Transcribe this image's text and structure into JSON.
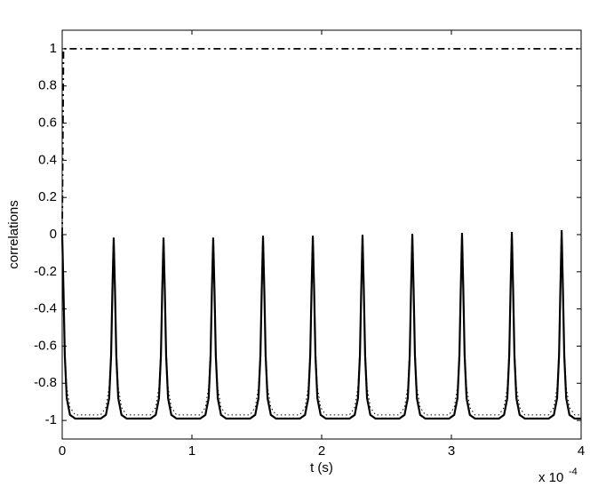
{
  "chart_data": {
    "type": "line",
    "x_label": "t (s)",
    "y_label": "correlations",
    "x_scale_label": "x 10",
    "x_scale_exponent": "-4",
    "xlim": [
      0,
      4
    ],
    "xticks": [
      0,
      1,
      2,
      3,
      4
    ],
    "ylim": [
      -1.1,
      1.1
    ],
    "yticks": [
      -1,
      -0.8,
      -0.6,
      -0.4,
      -0.2,
      0,
      0.2,
      0.4,
      0.6,
      0.8,
      1
    ],
    "grid": false,
    "x": [
      0,
      0.01,
      0.02,
      0.035,
      0.06,
      0.1,
      0.297,
      0.337,
      0.362,
      0.377,
      0.387,
      0.397,
      0.407,
      0.417,
      0.432,
      0.457,
      0.497,
      0.681,
      0.721,
      0.746,
      0.761,
      0.771,
      0.781,
      0.791,
      0.801,
      0.816,
      0.841,
      0.881,
      1.064,
      1.104,
      1.129,
      1.144,
      1.154,
      1.164,
      1.174,
      1.184,
      1.199,
      1.224,
      1.264,
      1.448,
      1.488,
      1.513,
      1.528,
      1.538,
      1.548,
      1.558,
      1.568,
      1.583,
      1.608,
      1.648,
      1.832,
      1.872,
      1.897,
      1.912,
      1.922,
      1.932,
      1.942,
      1.952,
      1.967,
      1.992,
      2.032,
      2.215,
      2.255,
      2.28,
      2.295,
      2.305,
      2.315,
      2.325,
      2.335,
      2.35,
      2.375,
      2.415,
      2.599,
      2.639,
      2.664,
      2.679,
      2.689,
      2.699,
      2.709,
      2.719,
      2.734,
      2.759,
      2.799,
      2.982,
      3.022,
      3.047,
      3.062,
      3.072,
      3.082,
      3.092,
      3.102,
      3.117,
      3.142,
      3.182,
      3.366,
      3.406,
      3.431,
      3.446,
      3.456,
      3.466,
      3.476,
      3.486,
      3.501,
      3.526,
      3.566,
      3.75,
      3.79,
      3.815,
      3.83,
      3.84,
      3.85,
      3.86,
      3.87,
      3.885,
      3.91,
      3.95,
      4
    ],
    "series": [
      {
        "color": "#000000",
        "linestyle": "dashdot",
        "x": [
          0,
          0.01,
          4
        ],
        "values": [
          0,
          1,
          1
        ]
      },
      {
        "color": "#000000",
        "linestyle": "dotted",
        "values": [
          0,
          -0.28,
          -0.6,
          -0.82,
          -0.93,
          -0.97,
          -0.97,
          -0.93,
          -0.82,
          -0.6,
          -0.28,
          -0.02,
          -0.28,
          -0.6,
          -0.82,
          -0.93,
          -0.97,
          -0.97,
          -0.93,
          -0.82,
          -0.6,
          -0.28,
          -0.02,
          -0.28,
          -0.6,
          -0.82,
          -0.93,
          -0.97,
          -0.97,
          -0.93,
          -0.82,
          -0.6,
          -0.28,
          -0.02,
          -0.28,
          -0.6,
          -0.82,
          -0.93,
          -0.97,
          -0.97,
          -0.93,
          -0.82,
          -0.6,
          -0.28,
          -0.01,
          -0.28,
          -0.6,
          -0.82,
          -0.93,
          -0.97,
          -0.97,
          -0.93,
          -0.82,
          -0.6,
          -0.28,
          -0.01,
          -0.28,
          -0.6,
          -0.82,
          -0.93,
          -0.97,
          -0.97,
          -0.93,
          -0.82,
          -0.6,
          -0.28,
          -0.005,
          -0.28,
          -0.6,
          -0.82,
          -0.93,
          -0.97,
          -0.97,
          -0.93,
          -0.82,
          -0.6,
          -0.28,
          0,
          -0.28,
          -0.6,
          -0.82,
          -0.93,
          -0.97,
          -0.97,
          -0.93,
          -0.82,
          -0.6,
          -0.28,
          0.005,
          -0.28,
          -0.6,
          -0.82,
          -0.93,
          -0.97,
          -0.97,
          -0.93,
          -0.82,
          -0.6,
          -0.28,
          0.01,
          -0.28,
          -0.6,
          -0.82,
          -0.93,
          -0.97,
          -0.97,
          -0.93,
          -0.82,
          -0.6,
          -0.28,
          0.02,
          -0.28,
          -0.6,
          -0.82,
          -0.93,
          -0.97,
          -0.97
        ]
      },
      {
        "color": "#000000",
        "linestyle": "solid",
        "values": [
          0,
          -0.3,
          -0.65,
          -0.88,
          -0.97,
          -0.99,
          -0.99,
          -0.97,
          -0.88,
          -0.65,
          -0.3,
          -0.02,
          -0.3,
          -0.65,
          -0.88,
          -0.97,
          -0.99,
          -0.99,
          -0.97,
          -0.88,
          -0.65,
          -0.3,
          -0.02,
          -0.3,
          -0.65,
          -0.88,
          -0.97,
          -0.99,
          -0.99,
          -0.97,
          -0.88,
          -0.65,
          -0.3,
          -0.02,
          -0.3,
          -0.65,
          -0.88,
          -0.97,
          -0.99,
          -0.99,
          -0.97,
          -0.88,
          -0.65,
          -0.3,
          -0.01,
          -0.3,
          -0.65,
          -0.88,
          -0.97,
          -0.99,
          -0.99,
          -0.97,
          -0.88,
          -0.65,
          -0.3,
          -0.01,
          -0.3,
          -0.65,
          -0.88,
          -0.97,
          -0.99,
          -0.99,
          -0.97,
          -0.88,
          -0.65,
          -0.3,
          -0.005,
          -0.3,
          -0.65,
          -0.88,
          -0.97,
          -0.99,
          -0.99,
          -0.97,
          -0.88,
          -0.65,
          -0.3,
          0,
          -0.3,
          -0.65,
          -0.88,
          -0.97,
          -0.99,
          -0.99,
          -0.97,
          -0.88,
          -0.65,
          -0.3,
          0.005,
          -0.3,
          -0.65,
          -0.88,
          -0.97,
          -0.99,
          -0.99,
          -0.97,
          -0.88,
          -0.65,
          -0.3,
          0.01,
          -0.3,
          -0.65,
          -0.88,
          -0.97,
          -0.99,
          -0.99,
          -0.97,
          -0.88,
          -0.65,
          -0.3,
          0.02,
          -0.3,
          -0.65,
          -0.88,
          -0.97,
          -0.99,
          -0.99
        ]
      }
    ]
  }
}
